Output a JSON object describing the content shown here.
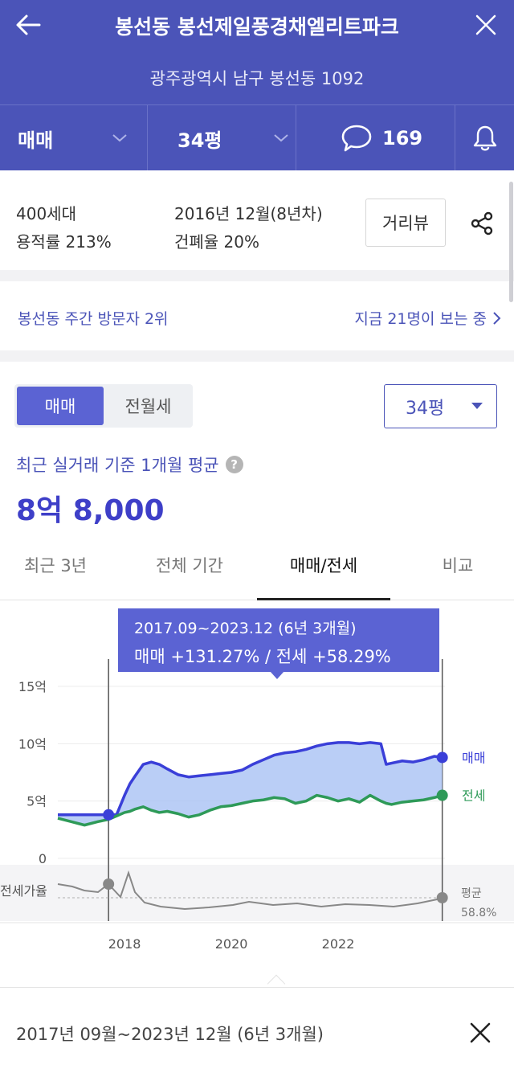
{
  "header": {
    "title": "봉선동 봉선제일풍경채엘리트파크",
    "address": "광주광역시 남구 봉선동 1092",
    "trade_type": "매매",
    "size": "34평",
    "comment_count": "169"
  },
  "info": {
    "households": "400세대",
    "floor_area_ratio": "용적률 213%",
    "built": "2016년 12월(8년차)",
    "building_coverage": "건폐율 20%",
    "distance_view_button": "거리뷰"
  },
  "visitors": {
    "rank_text": "봉선동 주간 방문자 2위",
    "now_viewing": "지금 21명이 보는 중"
  },
  "price_panel": {
    "segment_sale": "매매",
    "segment_lease": "전월세",
    "size_select": "34평",
    "avg_label": "최근 실거래 기준 1개월 평균",
    "avg_price": "8억 8,000"
  },
  "tabs": [
    "최근 3년",
    "전체 기간",
    "매매/전세",
    "비교"
  ],
  "active_tab": 2,
  "tooltip": {
    "range": "2017.09~2023.12 (6년 3개월)",
    "change": "매매 +131.27%  /  전세 +58.29%"
  },
  "chart_data": {
    "type": "line",
    "y_ticks": [
      "15억",
      "10억",
      "5억",
      "0"
    ],
    "ylim": [
      0,
      15
    ],
    "x_ticks": [
      "2018",
      "2020",
      "2022"
    ],
    "xlim": [
      2016.75,
      2024.0
    ],
    "series": [
      {
        "name": "매매",
        "color": "#3a3fd8",
        "x": [
          2016.75,
          2017.0,
          2017.25,
          2017.5,
          2017.7,
          2017.85,
          2018.0,
          2018.1,
          2018.2,
          2018.35,
          2018.5,
          2018.65,
          2018.8,
          2019.0,
          2019.2,
          2019.4,
          2019.6,
          2019.8,
          2020.0,
          2020.2,
          2020.4,
          2020.6,
          2020.8,
          2021.0,
          2021.2,
          2021.4,
          2021.6,
          2021.8,
          2022.0,
          2022.2,
          2022.4,
          2022.6,
          2022.8,
          2022.9,
          2023.0,
          2023.2,
          2023.4,
          2023.6,
          2023.8,
          2023.95
        ],
        "values": [
          3.8,
          3.8,
          3.8,
          3.8,
          3.8,
          3.8,
          5.5,
          6.5,
          7.2,
          8.2,
          8.4,
          8.2,
          7.8,
          7.3,
          7.1,
          7.2,
          7.3,
          7.4,
          7.5,
          7.7,
          8.2,
          8.6,
          9.0,
          9.2,
          9.3,
          9.5,
          9.8,
          10.0,
          10.1,
          10.1,
          10.0,
          10.1,
          10.0,
          8.2,
          8.3,
          8.5,
          8.4,
          8.6,
          8.9,
          8.8
        ]
      },
      {
        "name": "전세",
        "color": "#2e9a58",
        "x": [
          2016.75,
          2017.0,
          2017.25,
          2017.5,
          2017.7,
          2017.85,
          2018.0,
          2018.1,
          2018.2,
          2018.35,
          2018.5,
          2018.65,
          2018.8,
          2019.0,
          2019.2,
          2019.4,
          2019.6,
          2019.8,
          2020.0,
          2020.2,
          2020.4,
          2020.6,
          2020.8,
          2021.0,
          2021.2,
          2021.4,
          2021.6,
          2021.8,
          2022.0,
          2022.2,
          2022.4,
          2022.6,
          2022.8,
          2022.9,
          2023.0,
          2023.2,
          2023.4,
          2023.6,
          2023.8,
          2023.95
        ],
        "values": [
          3.5,
          3.2,
          2.9,
          3.2,
          3.4,
          3.7,
          4.0,
          4.1,
          4.3,
          4.5,
          4.2,
          4.0,
          4.1,
          3.9,
          3.6,
          3.8,
          4.2,
          4.5,
          4.6,
          4.8,
          5.0,
          5.1,
          5.3,
          5.2,
          4.8,
          5.0,
          5.5,
          5.3,
          5.0,
          5.2,
          4.9,
          5.5,
          5.0,
          4.8,
          4.7,
          4.9,
          5.0,
          5.1,
          5.3,
          5.5
        ]
      }
    ],
    "ratio_label": "전세가율",
    "ratio_avg_label": "평균",
    "ratio_avg_value": "58.8%"
  },
  "footer": {
    "period_text": "2017년 09월~2023년 12월 (6년 3개월)"
  }
}
